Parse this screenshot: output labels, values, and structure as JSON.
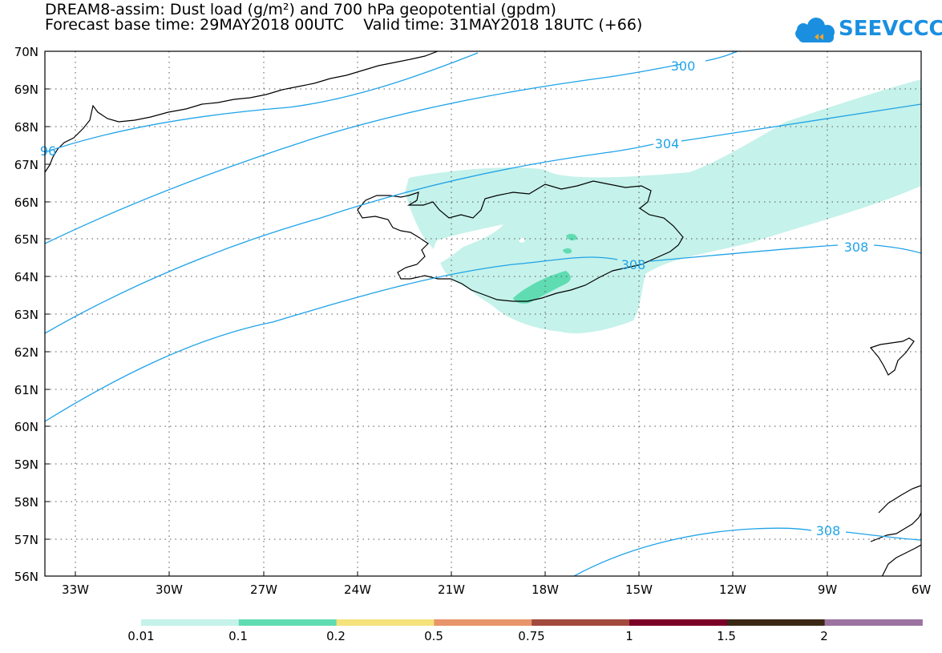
{
  "title": {
    "line1": "DREAM8-assim: Dust load (g/m²) and 700 hPa geopotential (gpdm)",
    "line2": "Forecast base time: 29MAY2018 00UTC    Valid time: 31MAY2018 18UTC (+66)"
  },
  "logo": {
    "text": "SEEVCCC",
    "icon": "cloud-icon"
  },
  "map": {
    "lon_ticks": [
      "33W",
      "30W",
      "27W",
      "24W",
      "21W",
      "18W",
      "15W",
      "12W",
      "9W",
      "6W"
    ],
    "lat_ticks": [
      "70N",
      "69N",
      "68N",
      "67N",
      "66N",
      "65N",
      "64N",
      "63N",
      "62N",
      "61N",
      "60N",
      "59N",
      "58N",
      "57N",
      "56N"
    ],
    "lon_range": [
      -34,
      -6
    ],
    "lat_range": [
      56,
      70
    ],
    "contour_labels": [
      "300",
      "304",
      "308",
      "308",
      "308",
      "96"
    ],
    "contour_color": "#1fa3e8",
    "coastline_color": "#000000",
    "dust_fill_color": "#c5f2ea",
    "dust_core_color": "#5fdcb1"
  },
  "colorbar": {
    "labels": [
      "0.01",
      "0.1",
      "0.2",
      "0.5",
      "0.75",
      "1",
      "1.5",
      "2"
    ],
    "colors": [
      "#c5f2ea",
      "#5fdcb1",
      "#f4e27b",
      "#e8956b",
      "#a24a3e",
      "#7a0028",
      "#3b2916",
      "#9b72a0"
    ]
  }
}
